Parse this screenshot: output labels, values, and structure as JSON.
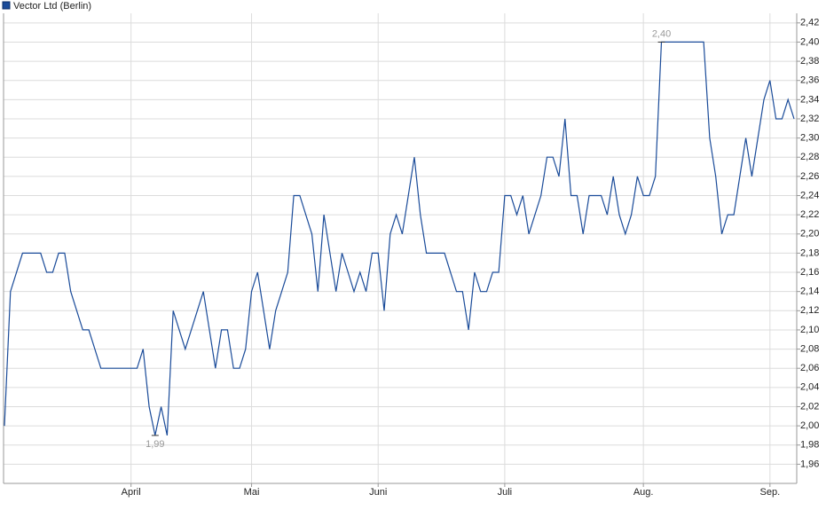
{
  "chart_data": {
    "type": "line",
    "legend": "Vector Ltd (Berlin)",
    "color": "#1a4b99",
    "x": [
      0,
      1,
      3,
      6,
      7,
      8,
      9,
      10,
      11,
      13,
      14,
      16,
      22,
      23,
      24,
      25,
      26,
      27,
      28,
      30,
      33,
      35,
      36,
      37,
      38,
      39,
      40,
      41,
      42,
      44,
      45,
      47,
      48,
      49,
      51,
      52,
      53,
      55,
      56,
      57,
      58,
      59,
      60,
      61,
      62,
      63,
      64,
      65,
      66,
      68,
      69,
      70,
      73,
      75,
      76,
      77,
      78,
      79,
      80,
      81,
      82,
      83,
      84,
      85,
      86,
      87,
      89,
      90,
      91,
      92,
      93,
      94,
      95,
      96,
      97,
      99,
      100,
      101,
      102,
      103,
      104,
      105,
      106,
      107,
      108,
      109,
      116,
      117,
      118,
      119,
      120,
      121,
      123,
      124,
      126,
      127,
      128,
      129,
      130,
      131
    ],
    "values": [
      2.0,
      2.14,
      2.18,
      2.18,
      2.16,
      2.16,
      2.18,
      2.18,
      2.14,
      2.1,
      2.1,
      2.06,
      2.06,
      2.08,
      2.02,
      1.99,
      2.02,
      1.99,
      2.12,
      2.08,
      2.14,
      2.06,
      2.1,
      2.1,
      2.06,
      2.06,
      2.08,
      2.14,
      2.16,
      2.08,
      2.12,
      2.16,
      2.24,
      2.24,
      2.2,
      2.14,
      2.22,
      2.14,
      2.18,
      2.16,
      2.14,
      2.16,
      2.14,
      2.18,
      2.18,
      2.12,
      2.2,
      2.22,
      2.2,
      2.28,
      2.22,
      2.18,
      2.18,
      2.14,
      2.14,
      2.1,
      2.16,
      2.14,
      2.14,
      2.16,
      2.16,
      2.24,
      2.24,
      2.22,
      2.24,
      2.2,
      2.24,
      2.28,
      2.28,
      2.26,
      2.32,
      2.24,
      2.24,
      2.2,
      2.24,
      2.24,
      2.22,
      2.26,
      2.22,
      2.2,
      2.22,
      2.26,
      2.24,
      2.24,
      2.26,
      2.4,
      2.4,
      2.3,
      2.26,
      2.2,
      2.22,
      2.22,
      2.3,
      2.26,
      2.34,
      2.36,
      2.32,
      2.32,
      2.34,
      2.32
    ],
    "xlim": [
      0,
      131
    ],
    "xticks": [
      {
        "value": 21,
        "label": "April"
      },
      {
        "value": 41,
        "label": "Mai"
      },
      {
        "value": 62,
        "label": "Juni"
      },
      {
        "value": 83,
        "label": "Juli"
      },
      {
        "value": 106,
        "label": "Aug."
      },
      {
        "value": 127,
        "label": "Sep."
      }
    ],
    "ylim": [
      1.94,
      2.43
    ],
    "yticks": [
      {
        "value": 1.96,
        "label": "1,96"
      },
      {
        "value": 1.98,
        "label": "1,98"
      },
      {
        "value": 2.0,
        "label": "2,00"
      },
      {
        "value": 2.02,
        "label": "2,02"
      },
      {
        "value": 2.04,
        "label": "2,04"
      },
      {
        "value": 2.06,
        "label": "2,06"
      },
      {
        "value": 2.08,
        "label": "2,08"
      },
      {
        "value": 2.1,
        "label": "2,10"
      },
      {
        "value": 2.12,
        "label": "2,12"
      },
      {
        "value": 2.14,
        "label": "2,14"
      },
      {
        "value": 2.16,
        "label": "2,16"
      },
      {
        "value": 2.18,
        "label": "2,18"
      },
      {
        "value": 2.2,
        "label": "2,20"
      },
      {
        "value": 2.22,
        "label": "2,22"
      },
      {
        "value": 2.24,
        "label": "2,24"
      },
      {
        "value": 2.26,
        "label": "2,26"
      },
      {
        "value": 2.28,
        "label": "2,28"
      },
      {
        "value": 2.3,
        "label": "2,30"
      },
      {
        "value": 2.32,
        "label": "2,32"
      },
      {
        "value": 2.34,
        "label": "2,34"
      },
      {
        "value": 2.36,
        "label": "2,36"
      },
      {
        "value": 2.38,
        "label": "2,38"
      },
      {
        "value": 2.4,
        "label": "2,40"
      },
      {
        "value": 2.42,
        "label": "2,42"
      }
    ],
    "grid": true,
    "annotations": [
      {
        "text": "2,40",
        "x": 109,
        "y": 2.4,
        "position": "above"
      },
      {
        "text": "1,99",
        "x": 25,
        "y": 1.99,
        "position": "below"
      }
    ]
  }
}
